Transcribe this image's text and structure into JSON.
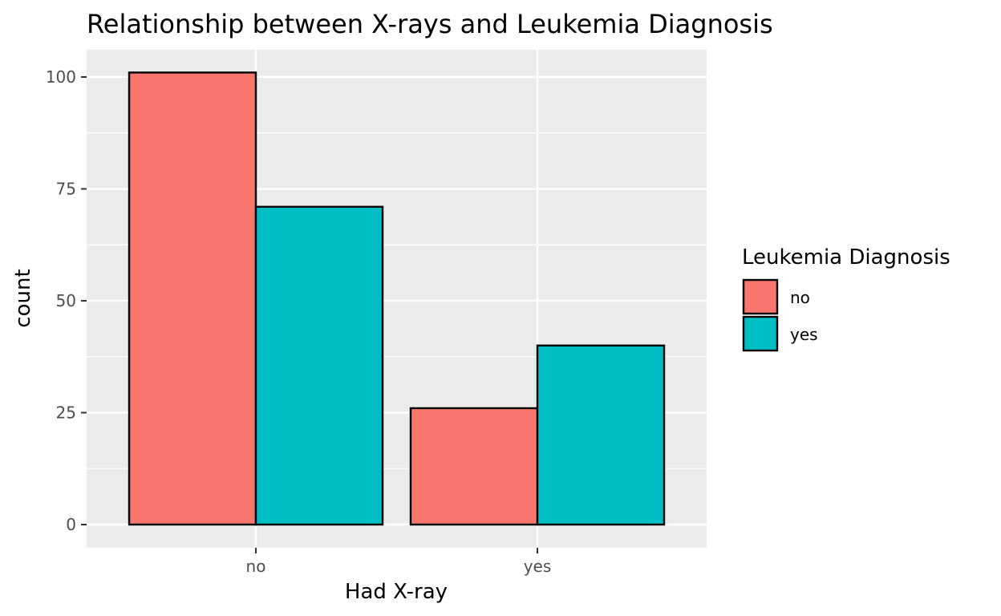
{
  "chart_data": {
    "type": "bar",
    "title": "Relationship between X-rays and Leukemia Diagnosis",
    "xlabel": "Had X-ray",
    "ylabel": "count",
    "categories": [
      "no",
      "yes"
    ],
    "series": [
      {
        "name": "no",
        "color": "#F8766D",
        "values": [
          101,
          26
        ]
      },
      {
        "name": "yes",
        "color": "#00BFC4",
        "values": [
          71,
          40
        ]
      }
    ],
    "ylim": [
      0,
      105
    ],
    "y_ticks": [
      "0",
      "25",
      "50",
      "75",
      "100"
    ],
    "grid": true,
    "legend": {
      "title": "Leukemia Diagnosis",
      "position": "right"
    },
    "panel_background": "#EBEBEB",
    "bar_outline": "#000000"
  }
}
